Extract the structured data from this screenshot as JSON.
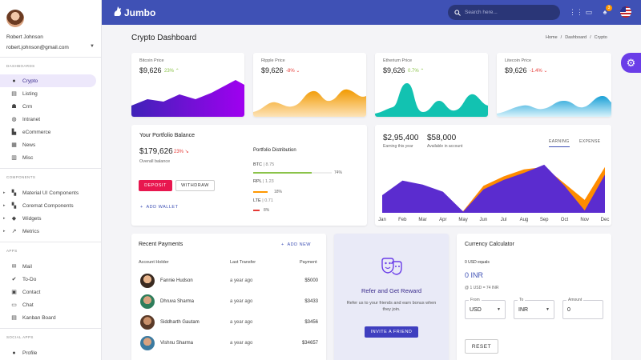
{
  "user": {
    "name": "Robert Johnson",
    "email": "robert.johnson@gmail.com"
  },
  "sidebar": {
    "sections": [
      {
        "label": "DASHBOARDS",
        "items": [
          {
            "label": "Crypto",
            "icon": "crypto-icon",
            "active": true
          },
          {
            "label": "Listing",
            "icon": "listing-icon"
          },
          {
            "label": "Crm",
            "icon": "crm-icon"
          },
          {
            "label": "Intranet",
            "icon": "intranet-icon"
          },
          {
            "label": "eCommerce",
            "icon": "cart-icon"
          },
          {
            "label": "News",
            "icon": "news-icon"
          },
          {
            "label": "Misc",
            "icon": "misc-icon"
          }
        ]
      },
      {
        "label": "COMPONENTS",
        "items": [
          {
            "label": "Material UI Components",
            "icon": "components-icon"
          },
          {
            "label": "Coremat Components",
            "icon": "components-icon"
          },
          {
            "label": "Widgets",
            "icon": "widgets-icon"
          },
          {
            "label": "Metrics",
            "icon": "metrics-icon"
          }
        ]
      },
      {
        "label": "APPS",
        "items": [
          {
            "label": "Mail",
            "icon": "mail-icon"
          },
          {
            "label": "To-Do",
            "icon": "todo-icon"
          },
          {
            "label": "Contact",
            "icon": "contact-icon"
          },
          {
            "label": "Chat",
            "icon": "chat-icon"
          },
          {
            "label": "Kanban Board",
            "icon": "kanban-icon"
          }
        ]
      },
      {
        "label": "SOCIAL APPS",
        "items": [
          {
            "label": "Profile",
            "icon": "profile-icon"
          }
        ]
      }
    ]
  },
  "topbar": {
    "brand": "Jumbo",
    "search_placeholder": "Search here...",
    "notification_count": "3"
  },
  "page": {
    "title": "Crypto Dashboard",
    "breadcrumbs": [
      "Home",
      "/",
      "Dashboard",
      "/",
      "Crypto"
    ]
  },
  "coins": [
    {
      "label": "Bitcoin Price",
      "price": "$9,626",
      "change": "23%",
      "trend": "up",
      "colors": [
        "#3f22b8",
        "#a000f0"
      ]
    },
    {
      "label": "Ripple Price",
      "price": "$9,626",
      "change": "-8%",
      "trend": "down",
      "colors": [
        "#f29a00",
        "#f8c77a"
      ]
    },
    {
      "label": "Etherium Price",
      "price": "$9,626",
      "change": "0.7%",
      "trend": "up",
      "colors": [
        "#0cb7a6",
        "#1fd1c0"
      ]
    },
    {
      "label": "Litecoin Price",
      "price": "$9,626",
      "change": "-1.4%",
      "trend": "down",
      "colors": [
        "#1aa0d6",
        "#bfe9f6"
      ]
    }
  ],
  "portfolio": {
    "title": "Your Portfolio Balance",
    "balance": "$179,626",
    "change": "23%",
    "balance_label": "Overall balance",
    "deposit_label": "DEPOSIT",
    "withdraw_label": "WITHDRAW",
    "add_wallet_label": "ADD WALLET",
    "distribution_title": "Portfolio Distribution",
    "items": [
      {
        "coin": "BTC",
        "amount": "8.75",
        "pct": "74%",
        "value": 0.74,
        "color": "#8bc34a"
      },
      {
        "coin": "RPL",
        "amount": "1.23",
        "pct": "18%",
        "value": 0.18,
        "color": "#ff9800"
      },
      {
        "coin": "LTE",
        "amount": "0.71",
        "pct": "8%",
        "value": 0.08,
        "color": "#e53935"
      }
    ]
  },
  "earnings": {
    "earning": "$2,95,400",
    "earning_label": "Earning this year",
    "available": "$58,000",
    "available_label": "Available in account",
    "tabs": [
      "EARNING",
      "EXPENSE"
    ],
    "chart_data": {
      "type": "area",
      "categories": [
        "Jan",
        "Feb",
        "Mar",
        "Apr",
        "May",
        "Jun",
        "Jul",
        "Aug",
        "Sep",
        "Oct",
        "Nov",
        "Dec"
      ],
      "series": [
        {
          "values": [
            3.0,
            5.5,
            4.8,
            3.6,
            0.2,
            4.0,
            5.6,
            6.8,
            8.2,
            4.6,
            0.4,
            6.5
          ],
          "color": "#5b2ccf"
        },
        {
          "values": [
            0.0,
            0.0,
            0.0,
            0.0,
            0.3,
            4.6,
            6.2,
            7.4,
            7.8,
            5.0,
            2.2,
            7.8
          ],
          "color": "#ff8c00"
        }
      ],
      "ylim": [
        0,
        9
      ]
    }
  },
  "payments": {
    "title": "Recent Payments",
    "add_label": "ADD NEW",
    "columns": [
      "Account Holder",
      "Last Transfer",
      "Payment"
    ],
    "rows": [
      {
        "name": "Fannie Hudson",
        "time": "a year ago",
        "amount": "$5000",
        "color": "#c98a5a"
      },
      {
        "name": "Dhruva Sharma",
        "time": "a year ago",
        "amount": "$3433",
        "color": "#3b8a6b"
      },
      {
        "name": "Siddharth Gautam",
        "time": "a year ago",
        "amount": "$3456",
        "color": "#8a5a3b"
      },
      {
        "name": "Vishnu Sharma",
        "time": "a year ago",
        "amount": "$34657",
        "color": "#4a7aa0"
      }
    ]
  },
  "refer": {
    "title": "Refer and Get Reward",
    "body": "Refer us to your friends and earn bonus when they join.",
    "button_label": "INVITE A FRIEND"
  },
  "calculator": {
    "title": "Currency Calculator",
    "equals_label": "0 USD equals",
    "result": "0 INR",
    "rate": "@ 1 USD = 74 INR",
    "from_label": "From",
    "from_value": "USD",
    "to_label": "To",
    "to_value": "INR",
    "amount_label": "Amount",
    "amount_value": "0",
    "reset_label": "RESET"
  }
}
